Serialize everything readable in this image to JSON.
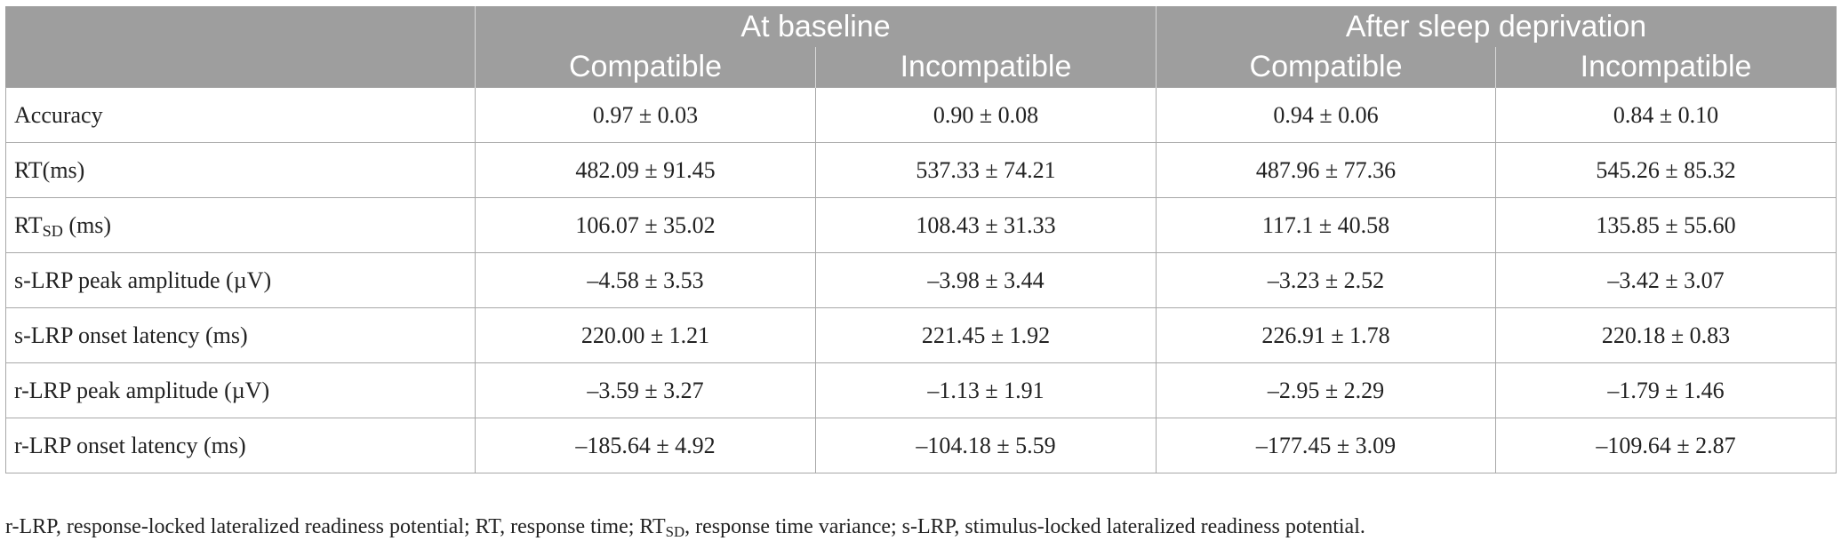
{
  "table": {
    "groups": [
      "At baseline",
      "After sleep deprivation"
    ],
    "subheaders": [
      "Compatible",
      "Incompatible",
      "Compatible",
      "Incompatible"
    ],
    "rows": [
      {
        "label": "Accuracy",
        "label_sub": "",
        "label_suffix": "",
        "values": [
          "0.97 ± 0.03",
          "0.90 ± 0.08",
          "0.94 ± 0.06",
          "0.84 ± 0.10"
        ]
      },
      {
        "label": "RT(ms)",
        "label_sub": "",
        "label_suffix": "",
        "values": [
          "482.09 ± 91.45",
          "537.33 ± 74.21",
          "487.96 ± 77.36",
          "545.26 ± 85.32"
        ]
      },
      {
        "label": "RT",
        "label_sub": "SD",
        "label_suffix": " (ms)",
        "values": [
          "106.07 ± 35.02",
          "108.43 ± 31.33",
          "117.1 ± 40.58",
          "135.85 ± 55.60"
        ]
      },
      {
        "label": "s-LRP peak amplitude (µV)",
        "label_sub": "",
        "label_suffix": "",
        "values": [
          "–4.58 ± 3.53",
          "–3.98 ± 3.44",
          "–3.23 ± 2.52",
          "–3.42 ± 3.07"
        ]
      },
      {
        "label": "s-LRP onset latency (ms)",
        "label_sub": "",
        "label_suffix": "",
        "values": [
          "220.00 ± 1.21",
          "221.45 ± 1.92",
          "226.91 ± 1.78",
          "220.18 ± 0.83"
        ]
      },
      {
        "label": "r-LRP peak amplitude (µV)",
        "label_sub": "",
        "label_suffix": "",
        "values": [
          "–3.59 ± 3.27",
          "–1.13 ± 1.91",
          "–2.95 ± 2.29",
          "–1.79 ± 1.46"
        ]
      },
      {
        "label": "r-LRP onset latency (ms)",
        "label_sub": "",
        "label_suffix": "",
        "values": [
          "–185.64 ± 4.92",
          "–104.18 ± 5.59",
          "–177.45 ± 3.09",
          "–109.64 ± 2.87"
        ]
      }
    ]
  },
  "footnote": {
    "part1": "r-LRP, response-locked lateralized readiness potential; RT, response time; RT",
    "sub": "SD",
    "part2": ", response time variance; s-LRP, stimulus-locked lateralized readiness potential."
  },
  "colors": {
    "header_bg": "#9e9e9e",
    "header_text": "#ffffff",
    "grid": "#a8a8a8"
  }
}
